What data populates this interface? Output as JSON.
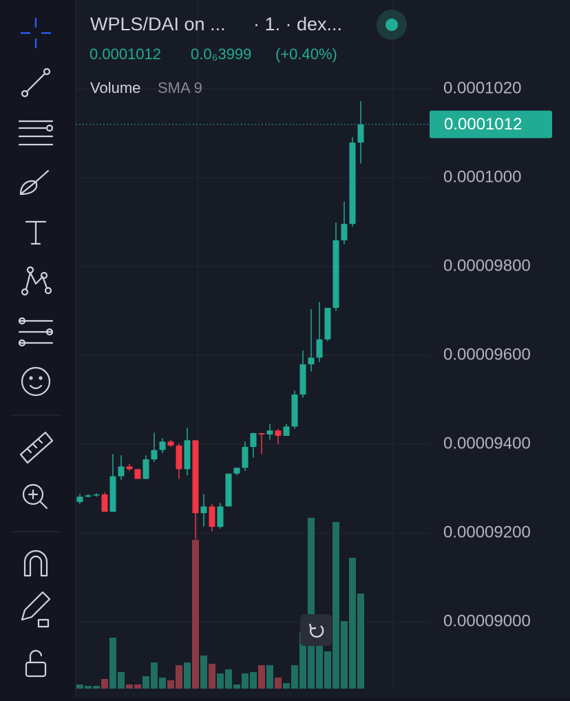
{
  "chart_data": {
    "type": "candlestick",
    "symbol": "WPLS/DAI on ...",
    "interval": "· 1. · dex...",
    "last_price": 0.0001012,
    "change": "0.0₆3999",
    "change_pct": "(+0.40%)",
    "volume_label": "Volume",
    "sma_label": "SMA 9",
    "up_color": "#22ab94",
    "down_color": "#f23645",
    "volume_up_color": "#1f6f62",
    "volume_down_color": "#8a3a44",
    "grid": true,
    "ylim": [
      8.85e-05,
      0.000104
    ],
    "yticks": [
      {
        "value": 0.000102,
        "label": "0.0001020"
      },
      {
        "value": 0.0001,
        "label": "0.0001000"
      },
      {
        "value": 9.8e-05,
        "label": "0.00009800"
      },
      {
        "value": 9.6e-05,
        "label": "0.00009600"
      },
      {
        "value": 9.4e-05,
        "label": "0.00009400"
      },
      {
        "value": 9.2e-05,
        "label": "0.00009200"
      },
      {
        "value": 9e-05,
        "label": "0.00009000"
      }
    ],
    "open": [
      9.27e-05,
      9.282e-05,
      9.285e-05,
      9.287e-05,
      9.248e-05,
      9.328e-05,
      9.35e-05,
      9.344e-05,
      9.322e-05,
      9.366e-05,
      9.387e-05,
      9.406e-05,
      9.397e-05,
      9.344e-05,
      9.409e-05,
      9.245e-05,
      9.26e-05,
      9.214e-05,
      9.26e-05,
      9.334e-05,
      9.347e-05,
      9.394e-05,
      9.425e-05,
      9.422e-05,
      9.431e-05,
      9.419e-05,
      9.44e-05,
      9.512e-05,
      9.58e-05,
      9.595e-05,
      9.636e-05,
      9.707e-05,
      9.859e-05,
      9.896e-05,
      0.00010079
    ],
    "high": [
      9.288e-05,
      9.288e-05,
      9.29e-05,
      9.292e-05,
      9.378e-05,
      9.375e-05,
      9.356e-05,
      9.344e-05,
      9.375e-05,
      9.426e-05,
      9.414e-05,
      9.41e-05,
      9.402e-05,
      9.437e-05,
      9.409e-05,
      9.288e-05,
      9.266e-05,
      9.268e-05,
      9.334e-05,
      9.347e-05,
      9.406e-05,
      9.426e-05,
      9.425e-05,
      9.446e-05,
      9.434e-05,
      9.446e-05,
      9.521e-05,
      9.611e-05,
      9.704e-05,
      9.72e-05,
      9.707e-05,
      9.899e-05,
      9.946e-05,
      0.00010091,
      0.00010172
    ],
    "low": [
      9.266e-05,
      9.28e-05,
      9.282e-05,
      9.248e-05,
      9.248e-05,
      9.32e-05,
      9.34e-05,
      9.322e-05,
      9.322e-05,
      9.36e-05,
      9.38e-05,
      9.394e-05,
      9.322e-05,
      9.33e-05,
      9.186e-05,
      9.215e-05,
      9.204e-05,
      9.21e-05,
      9.26e-05,
      9.33e-05,
      9.34e-05,
      9.37e-05,
      9.378e-05,
      9.41e-05,
      9.4e-05,
      9.419e-05,
      9.435e-05,
      9.505e-05,
      9.564e-05,
      9.585e-05,
      9.632e-05,
      9.7e-05,
      9.85e-05,
      9.89e-05,
      0.00010032
    ],
    "close": [
      9.282e-05,
      9.285e-05,
      9.287e-05,
      9.248e-05,
      9.328e-05,
      9.35e-05,
      9.344e-05,
      9.322e-05,
      9.366e-05,
      9.387e-05,
      9.406e-05,
      9.397e-05,
      9.344e-05,
      9.409e-05,
      9.245e-05,
      9.26e-05,
      9.214e-05,
      9.26e-05,
      9.334e-05,
      9.347e-05,
      9.394e-05,
      9.425e-05,
      9.422e-05,
      9.431e-05,
      9.419e-05,
      9.44e-05,
      9.512e-05,
      9.58e-05,
      9.595e-05,
      9.636e-05,
      9.707e-05,
      9.859e-05,
      9.896e-05,
      0.00010079,
      0.0001012
    ],
    "volume": [
      6,
      4,
      4,
      14,
      74,
      24,
      6,
      6,
      18,
      38,
      16,
      12,
      34,
      38,
      216,
      48,
      36,
      22,
      28,
      6,
      22,
      24,
      34,
      34,
      16,
      8,
      34,
      82,
      248,
      98,
      54,
      242,
      98,
      190,
      138
    ]
  }
}
